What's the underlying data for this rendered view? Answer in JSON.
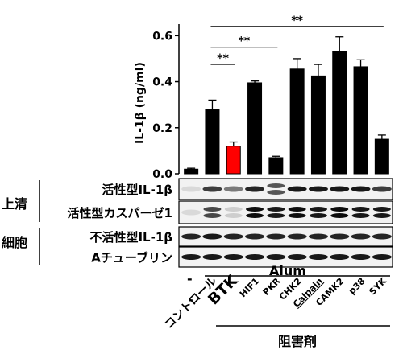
{
  "chart_data": {
    "type": "bar",
    "ylabel": "IL-1β (ng/ml)",
    "ylim": [
      0,
      0.65
    ],
    "yticks": [
      "0.0",
      "0.2",
      "0.4",
      "0.6"
    ],
    "ytick_values": [
      0,
      0.2,
      0.4,
      0.6
    ],
    "grid": false,
    "categories": [
      "-",
      "コントロール",
      "BTK",
      "HIF1",
      "PKR",
      "CHK2",
      "Calpain",
      "CAMK2",
      "p38",
      "SYK"
    ],
    "values": [
      0.02,
      0.28,
      0.12,
      0.395,
      0.07,
      0.455,
      0.425,
      0.53,
      0.465,
      0.15
    ],
    "errors": [
      0.004,
      0.04,
      0.018,
      0.008,
      0.006,
      0.045,
      0.05,
      0.065,
      0.03,
      0.018
    ],
    "bar_colors": [
      "#000000",
      "#000000",
      "#ff0000",
      "#000000",
      "#000000",
      "#000000",
      "#000000",
      "#000000",
      "#000000",
      "#000000"
    ],
    "significance": [
      {
        "label": "**",
        "from": "コントロール",
        "to": "BTK"
      },
      {
        "label": "**",
        "from": "コントロール",
        "to": "PKR"
      },
      {
        "label": "**",
        "from": "コントロール",
        "to": "SYK"
      }
    ]
  },
  "blot": {
    "supernatant_label": "上清",
    "cell_label": "細胞",
    "rows": [
      {
        "label": "活性型IL-1β",
        "intensity": [
          0.1,
          0.75,
          0.5,
          0.85,
          0.65,
          0.9,
          0.9,
          0.9,
          0.9,
          0.75
        ]
      },
      {
        "label": "活性型カスパーゼ1",
        "intensity": [
          0.1,
          0.7,
          0.15,
          0.95,
          0.9,
          0.95,
          0.9,
          0.95,
          0.9,
          0.9
        ]
      },
      {
        "label": "不活性型IL-1β",
        "intensity": [
          0.85,
          0.9,
          0.85,
          0.85,
          0.85,
          0.85,
          0.85,
          0.85,
          0.85,
          0.85
        ]
      },
      {
        "label": "Aチューブリン",
        "intensity": [
          0.9,
          0.9,
          0.9,
          0.9,
          0.9,
          0.9,
          0.9,
          0.9,
          0.9,
          0.9
        ]
      }
    ]
  },
  "treatment": {
    "alum_label": "Alum",
    "alum_signs": [
      "-"
    ],
    "inhibitor_label": "阻害剤",
    "highlight_color": "#ff0000"
  }
}
